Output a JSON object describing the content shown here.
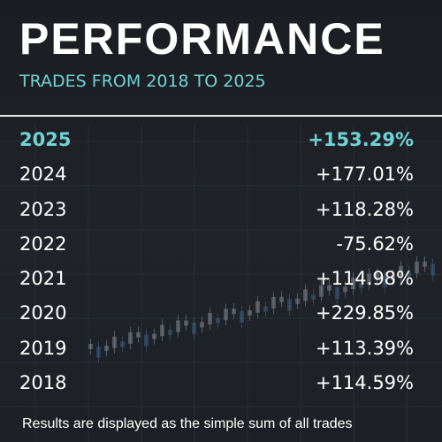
{
  "header": {
    "title": "PERFORMANCE",
    "subtitle": "TRADES FROM 2018 TO 2025"
  },
  "table": {
    "rows": [
      [
        "2025",
        "+153.29%"
      ],
      [
        "2024",
        "+177.01%"
      ],
      [
        "2023",
        "+118.28%"
      ],
      [
        "2022",
        "-75.62%"
      ],
      [
        "2021",
        "+114.98%"
      ],
      [
        "2020",
        "+229.85%"
      ],
      [
        "2019",
        "+113.39%"
      ],
      [
        "2018",
        "+114.59%"
      ]
    ]
  },
  "footer": {
    "note": "Results are displayed as the simple sum of all trades"
  }
}
